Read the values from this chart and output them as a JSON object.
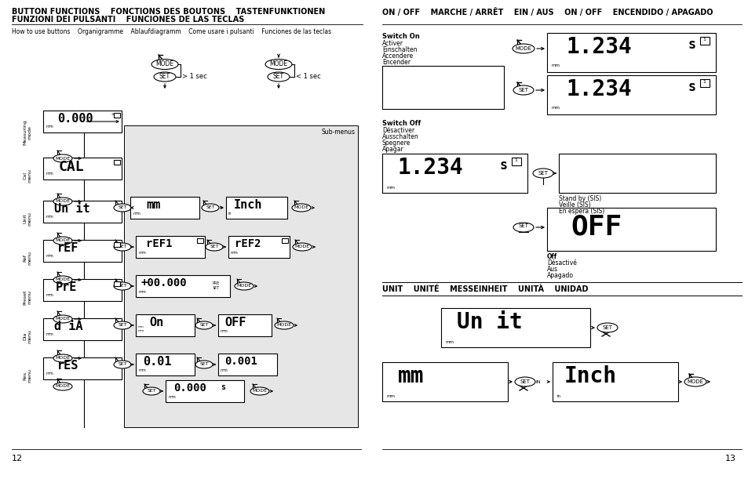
{
  "bg_color": "#ffffff",
  "left_title_line1": "BUTTON FUNCTIONS    FONCTIONS DES BOUTONS    TASTENFUNKTIONEN",
  "left_title_line2": "FUNZIONI DEI PULSANTI    FUNCIONES DE LAS TECLAS",
  "right_title": "ON / OFF    MARCHE / ARRÊT    EIN / AUS    ON / OFF    ENCENDIDO / APAGADO",
  "right_subtitle": "UNIT    UNITÉ    MESSEINHEIT    UNITÀ    UNIDAD",
  "page_left": "12",
  "page_right": "13",
  "subtitle_left": "How to use buttons    Organigramme    Ablaufdiagramm    Come usare i pulsanti    Funciones de las teclas",
  "gray_bg": "#e6e6e6"
}
